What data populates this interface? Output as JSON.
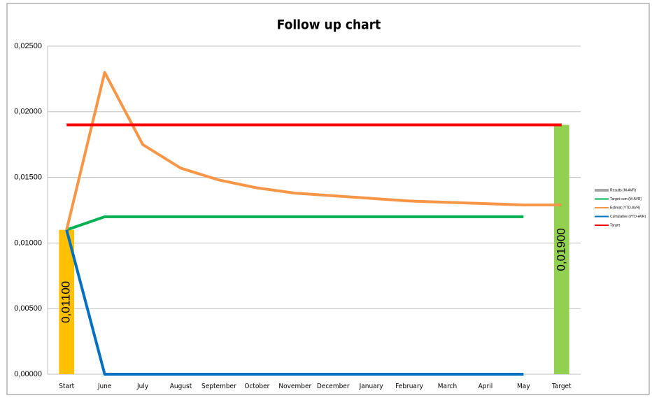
{
  "chart_data": {
    "type": "combo",
    "title": "Follow up chart",
    "categories": [
      "Start",
      "June",
      "July",
      "August",
      "September",
      "October",
      "November",
      "December",
      "January",
      "February",
      "March",
      "April",
      "May",
      "Target"
    ],
    "ylim": [
      0,
      0.025
    ],
    "yticks": [
      {
        "value": 0,
        "label": "0,00000"
      },
      {
        "value": 0.005,
        "label": "0,00500"
      },
      {
        "value": 0.01,
        "label": "0,01000"
      },
      {
        "value": 0.015,
        "label": "0,01500"
      },
      {
        "value": 0.02,
        "label": "0,02000"
      },
      {
        "value": 0.025,
        "label": "0,02500"
      }
    ],
    "grid": true,
    "legend": "right",
    "series": [
      {
        "name": "Results (M-AVR)",
        "kind": "bar",
        "color": "#a6a6a6",
        "point_colors": [
          "#ffc000",
          null,
          null,
          null,
          null,
          null,
          null,
          null,
          null,
          null,
          null,
          null,
          null,
          "#92d050"
        ],
        "values": [
          0.011,
          null,
          null,
          null,
          null,
          null,
          null,
          null,
          null,
          null,
          null,
          null,
          null,
          0.019
        ],
        "value_labels": [
          "0,01100",
          null,
          null,
          null,
          null,
          null,
          null,
          null,
          null,
          null,
          null,
          null,
          null,
          "0,01900"
        ]
      },
      {
        "name": "Target cum (M-AVR)",
        "kind": "line",
        "color": "#00b050",
        "values": [
          0.011,
          0.012,
          0.012,
          0.012,
          0.012,
          0.012,
          0.012,
          0.012,
          0.012,
          0.012,
          0.012,
          0.012,
          0.012,
          null
        ]
      },
      {
        "name": "Estimat (YTD-AVR)",
        "kind": "line",
        "color": "#f79646",
        "values": [
          0.011,
          0.023,
          0.0175,
          0.0157,
          0.0148,
          0.0142,
          0.0138,
          0.0136,
          0.0134,
          0.0132,
          0.0131,
          0.013,
          0.0129,
          0.0129
        ]
      },
      {
        "name": "Cumulative (YTD-AVR)",
        "kind": "line",
        "color": "#0070c0",
        "values": [
          0.011,
          0,
          0,
          0,
          0,
          0,
          0,
          0,
          0,
          0,
          0,
          0,
          0,
          null
        ]
      },
      {
        "name": "Target",
        "kind": "line",
        "color": "#ff0000",
        "values": [
          0.019,
          0.019,
          0.019,
          0.019,
          0.019,
          0.019,
          0.019,
          0.019,
          0.019,
          0.019,
          0.019,
          0.019,
          0.019,
          0.019
        ]
      }
    ]
  }
}
